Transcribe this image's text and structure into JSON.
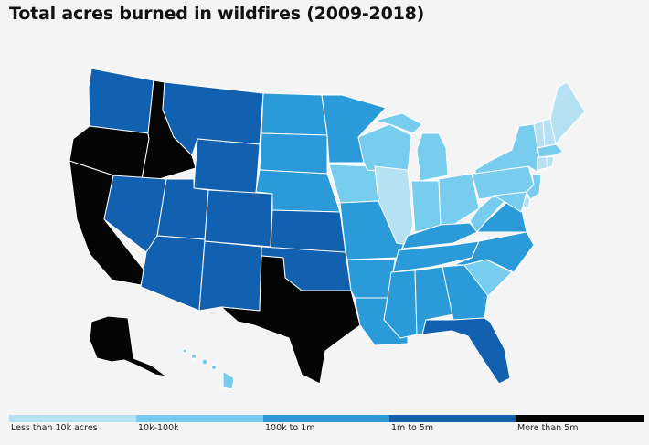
{
  "title": "Total acres burned in wildfires (2009-2018)",
  "legend": [
    {
      "label": "Less than 10k acres",
      "color": "#b6e1f3"
    },
    {
      "label": "10k-100k",
      "color": "#78cdef"
    },
    {
      "label": "100k to 1m",
      "color": "#2a9ad8"
    },
    {
      "label": "1m to 5m",
      "color": "#1261b0"
    },
    {
      "label": "More than 5m",
      "color": "#050505"
    }
  ],
  "states": {
    "WA": "1m to 5m",
    "OR": "More than 5m",
    "CA": "More than 5m",
    "ID": "More than 5m",
    "NV": "1m to 5m",
    "MT": "1m to 5m",
    "WY": "1m to 5m",
    "UT": "1m to 5m",
    "AZ": "1m to 5m",
    "CO": "1m to 5m",
    "NM": "1m to 5m",
    "ND": "100k to 1m",
    "SD": "100k to 1m",
    "NE": "100k to 1m",
    "KS": "1m to 5m",
    "OK": "1m to 5m",
    "TX": "More than 5m",
    "MN": "100k to 1m",
    "IA": "10k-100k",
    "MO": "100k to 1m",
    "AR": "100k to 1m",
    "LA": "100k to 1m",
    "WI": "10k-100k",
    "IL": "Less than 10k acres",
    "MI": "10k-100k",
    "IN": "10k-100k",
    "OH": "10k-100k",
    "KY": "100k to 1m",
    "TN": "100k to 1m",
    "MS": "100k to 1m",
    "AL": "100k to 1m",
    "GA": "100k to 1m",
    "FL": "1m to 5m",
    "SC": "10k-100k",
    "NC": "100k to 1m",
    "VA": "100k to 1m",
    "WV": "10k-100k",
    "PA": "10k-100k",
    "NY": "10k-100k",
    "ME": "Less than 10k acres",
    "VT": "Less than 10k acres",
    "NH": "Less than 10k acres",
    "MA": "10k-100k",
    "CT": "Less than 10k acres",
    "RI": "Less than 10k acres",
    "NJ": "10k-100k",
    "DE": "Less than 10k acres",
    "MD": "10k-100k",
    "AK": "More than 5m",
    "HI": "10k-100k"
  }
}
